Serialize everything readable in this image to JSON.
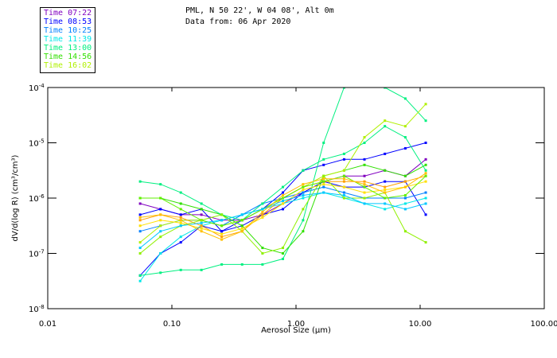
{
  "chart_data": {
    "type": "line",
    "title_line1": "PML, N 50 22', W 04 08', Alt 0m",
    "title_line2": "Data from: 06 Apr 2020",
    "xlabel": "Aerosol Size (μm)",
    "ylabel": "dV/d(log R) (cm³/cm³)",
    "xscale": "log",
    "yscale": "log",
    "xlim": [
      0.01,
      100
    ],
    "ylim": [
      1e-08,
      0.0001
    ],
    "x_ticks": [
      "0.01",
      "0.10",
      "1.00",
      "10.00",
      "100.00"
    ],
    "y_ticks": [
      {
        "base": "10",
        "exp": "-4"
      },
      {
        "base": "10",
        "exp": "-5"
      },
      {
        "base": "10",
        "exp": "-6"
      },
      {
        "base": "10",
        "exp": "-7"
      },
      {
        "base": "10",
        "exp": "-8"
      }
    ],
    "legend": [
      {
        "label": "Time 07:22",
        "color": "#8000c0"
      },
      {
        "label": "Time 08:53",
        "color": "#0000ff"
      },
      {
        "label": "Time 10:25",
        "color": "#0080ff"
      },
      {
        "label": "Time 11:39",
        "color": "#00e8e8"
      },
      {
        "label": "Time 13:00",
        "color": "#00f080"
      },
      {
        "label": "Time 14:56",
        "color": "#30e000"
      },
      {
        "label": "Time 16:02",
        "color": "#b0f000"
      }
    ],
    "x": [
      0.0555,
      0.081,
      0.118,
      0.173,
      0.252,
      0.368,
      0.537,
      0.784,
      1.14,
      1.67,
      2.44,
      3.56,
      5.2,
      7.6,
      11.1
    ],
    "series": [
      {
        "color": "#8000c0",
        "log10_y": [
          -6.1,
          -6.2,
          -6.3,
          -6.3,
          -6.4,
          -6.4,
          -6.3,
          -6.1,
          -5.9,
          -5.7,
          -5.6,
          -5.6,
          -5.5,
          -5.6,
          -5.3
        ]
      },
      {
        "color": "#0000ff",
        "log10_y": [
          -6.3,
          -6.2,
          -6.3,
          -6.2,
          -6.6,
          -6.4,
          -6.2,
          -5.9,
          -5.5,
          -5.4,
          -5.3,
          -5.3,
          -5.2,
          -5.1,
          -5.0
        ]
      },
      {
        "color": "#0000ff",
        "log10_y": [
          -7.4,
          -7.0,
          -6.8,
          -6.5,
          -6.6,
          -6.5,
          -6.3,
          -6.2,
          -5.9,
          -5.7,
          -5.8,
          -5.8,
          -5.7,
          -5.7,
          -6.3
        ]
      },
      {
        "color": "#0080ff",
        "log10_y": [
          -6.6,
          -6.5,
          -6.4,
          -6.4,
          -6.5,
          -6.3,
          -6.1,
          -6.0,
          -5.9,
          -5.8,
          -5.9,
          -6.0,
          -6.0,
          -6.0,
          -5.9
        ]
      },
      {
        "color": "#00e8e8",
        "log10_y": [
          -7.5,
          -7.0,
          -6.7,
          -6.5,
          -6.4,
          -6.3,
          -6.2,
          -6.1,
          -6.0,
          -5.9,
          -6.0,
          -6.1,
          -6.2,
          -6.1,
          -6.0
        ]
      },
      {
        "color": "#00f080",
        "log10_y": [
          -7.4,
          -7.35,
          -7.3,
          -7.3,
          -7.2,
          -7.2,
          -7.2,
          -7.1,
          -6.4,
          -5.0,
          -4.0,
          -3.9,
          -4.0,
          -4.2,
          -4.6
        ]
      },
      {
        "color": "#30e000",
        "log10_y": [
          -6.0,
          -6.0,
          -6.1,
          -6.2,
          -6.3,
          -6.5,
          -6.9,
          -7.0,
          -6.6,
          -5.6,
          -5.5,
          -5.4,
          -5.5,
          -5.6,
          -5.4
        ]
      },
      {
        "color": "#00f080",
        "log10_y": [
          -5.7,
          -5.75,
          -5.9,
          -6.1,
          -6.3,
          -6.4,
          -6.1,
          -5.8,
          -5.5,
          -5.3,
          -5.2,
          -5.0,
          -4.7,
          -4.9,
          -5.5
        ]
      },
      {
        "color": "#b0f000",
        "log10_y": [
          -6.8,
          -6.5,
          -6.4,
          -6.4,
          -6.5,
          -6.4,
          -6.2,
          -6.0,
          -5.8,
          -5.6,
          -5.5,
          -4.9,
          -4.6,
          -4.7,
          -4.3
        ]
      },
      {
        "color": "#ffa000",
        "log10_y": [
          -6.4,
          -6.3,
          -6.35,
          -6.5,
          -6.7,
          -6.6,
          -6.3,
          -6.0,
          -5.8,
          -5.7,
          -5.7,
          -5.7,
          -5.8,
          -5.7,
          -5.6
        ]
      },
      {
        "color": "#ffe000",
        "log10_y": [
          -6.5,
          -6.4,
          -6.45,
          -6.55,
          -6.65,
          -6.55,
          -6.35,
          -6.1,
          -5.85,
          -5.75,
          -5.8,
          -5.9,
          -5.85,
          -5.8,
          -5.7
        ]
      },
      {
        "color": "#60f000",
        "log10_y": [
          -6.0,
          -6.0,
          -6.2,
          -6.4,
          -6.5,
          -6.4,
          -6.2,
          -6.0,
          -5.8,
          -5.7,
          -5.6,
          -5.8,
          -6.0,
          -5.95,
          -5.6
        ]
      },
      {
        "color": "#90f000",
        "log10_y": [
          -7.0,
          -6.7,
          -6.5,
          -6.4,
          -6.3,
          -6.6,
          -7.0,
          -6.9,
          -6.2,
          -5.6,
          -6.0,
          -6.0,
          -5.9,
          -6.6,
          -6.8
        ]
      },
      {
        "color": "#00c8ff",
        "log10_y": [
          -6.9,
          -6.6,
          -6.5,
          -6.45,
          -6.4,
          -6.3,
          -6.2,
          -6.05,
          -5.95,
          -5.9,
          -5.95,
          -6.1,
          -6.1,
          -6.2,
          -6.1
        ]
      },
      {
        "color": "#ffc000",
        "log10_y": [
          -6.35,
          -6.3,
          -6.4,
          -6.6,
          -6.75,
          -6.6,
          -6.25,
          -5.95,
          -5.75,
          -5.65,
          -5.65,
          -5.75,
          -5.9,
          -5.8,
          -5.55
        ]
      }
    ]
  }
}
